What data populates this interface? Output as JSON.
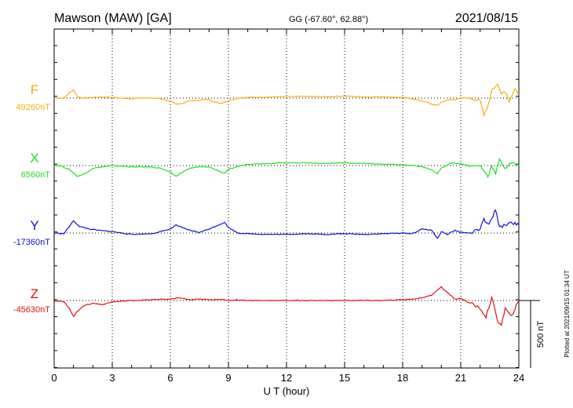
{
  "header": {
    "station": "Mawson (MAW)  [GA]",
    "coords": "GG (-67.60°,  62.88°)",
    "date": "2021/08/15"
  },
  "footer": {
    "plotted": "Plotted at 2021/09/15 01:34  UT"
  },
  "chart_data": {
    "type": "line",
    "xlabel": "U T (hour)",
    "xlim": [
      0,
      24
    ],
    "xticks": [
      "0",
      "3",
      "6",
      "9",
      "12",
      "15",
      "18",
      "21",
      "24"
    ],
    "scale_label": "500 nT",
    "grid": true,
    "series": [
      {
        "name": "F",
        "baseline": "49260nT",
        "color": "#f5b010",
        "x": [
          0,
          0.5,
          0.8,
          1.0,
          1.2,
          1.5,
          2,
          2.5,
          3,
          3.5,
          4,
          4.5,
          5,
          5.5,
          6,
          6.3,
          6.6,
          7,
          7.5,
          8,
          8.3,
          8.6,
          9,
          9.5,
          10,
          11,
          12,
          13,
          14,
          15,
          16,
          17,
          18,
          18.5,
          19,
          19.5,
          19.8,
          20,
          20.3,
          20.7,
          21,
          21.5,
          22,
          22.2,
          22.4,
          22.6,
          22.9,
          23.1,
          23.3,
          23.5,
          23.8,
          24
        ],
        "y": [
          0,
          0,
          40,
          60,
          10,
          0,
          5,
          8,
          5,
          0,
          -5,
          0,
          2,
          -8,
          -20,
          -45,
          -40,
          -20,
          -15,
          -10,
          -30,
          -40,
          -20,
          0,
          5,
          8,
          10,
          12,
          10,
          15,
          8,
          10,
          5,
          -5,
          -20,
          -45,
          -55,
          -30,
          -15,
          -10,
          0,
          0,
          -20,
          -120,
          -60,
          60,
          100,
          40,
          50,
          -20,
          60,
          30
        ]
      },
      {
        "name": "X",
        "baseline": "6560nT",
        "color": "#1fe01f",
        "x": [
          0,
          0.3,
          0.8,
          1.2,
          1.6,
          2,
          2.5,
          3,
          3.5,
          4,
          5,
          5.5,
          6,
          6.3,
          6.6,
          7,
          7.5,
          8,
          8.5,
          8.8,
          9,
          9.5,
          10,
          11,
          12,
          13,
          14,
          15,
          16,
          17,
          18,
          18.5,
          19,
          19.5,
          19.8,
          20,
          20.5,
          21,
          21.5,
          22,
          22.2,
          22.4,
          22.6,
          22.8,
          23,
          23.3,
          23.6,
          24
        ],
        "y": [
          0,
          0,
          -30,
          -80,
          -60,
          -20,
          -10,
          0,
          -5,
          -10,
          -10,
          -20,
          -50,
          -80,
          -50,
          -20,
          -10,
          -10,
          -40,
          -60,
          -30,
          -5,
          10,
          15,
          20,
          20,
          15,
          20,
          15,
          10,
          5,
          0,
          -10,
          -30,
          -60,
          -20,
          20,
          15,
          -5,
          0,
          -40,
          -80,
          0,
          -60,
          40,
          -20,
          20,
          0
        ]
      },
      {
        "name": "Y",
        "baseline": "-17360nT",
        "color": "#1010e0",
        "x": [
          0,
          0.5,
          1.0,
          1.3,
          1.8,
          2.3,
          3,
          3.5,
          4,
          5,
          5.5,
          6,
          6.3,
          6.6,
          7,
          7.5,
          8,
          8.5,
          8.8,
          9,
          9.5,
          10,
          11,
          12,
          13,
          14,
          15,
          16,
          17,
          18,
          18.5,
          19,
          19.5,
          19.8,
          20,
          20.3,
          20.7,
          21,
          21.5,
          22,
          22.2,
          22.4,
          22.6,
          22.8,
          23,
          23.3,
          23.6,
          24
        ],
        "y": [
          0,
          -5,
          90,
          50,
          30,
          20,
          10,
          0,
          -10,
          -5,
          10,
          30,
          60,
          40,
          20,
          5,
          30,
          60,
          80,
          40,
          0,
          -5,
          -10,
          -10,
          -5,
          -10,
          -5,
          -10,
          -5,
          0,
          -5,
          30,
          20,
          -40,
          10,
          -10,
          20,
          5,
          0,
          30,
          100,
          60,
          100,
          180,
          40,
          60,
          80,
          60
        ]
      },
      {
        "name": "Z",
        "baseline": "-45630nT",
        "color": "#e01010",
        "x": [
          0,
          0.5,
          0.8,
          1.0,
          1.2,
          1.5,
          2,
          2.5,
          3,
          3.5,
          4,
          5,
          5.5,
          6,
          6.5,
          7,
          7.5,
          8,
          8.5,
          9,
          9.5,
          10,
          11,
          12,
          13,
          14,
          15,
          16,
          17,
          18,
          18.5,
          19,
          19.5,
          19.8,
          20,
          20.3,
          20.7,
          21,
          21.5,
          22,
          22.3,
          22.6,
          22.9,
          23.1,
          23.3,
          23.6,
          24
        ],
        "y": [
          0,
          -10,
          -60,
          -120,
          -80,
          -40,
          -20,
          -30,
          -10,
          -5,
          0,
          5,
          10,
          10,
          20,
          5,
          10,
          5,
          10,
          0,
          5,
          0,
          0,
          0,
          0,
          0,
          0,
          0,
          0,
          5,
          10,
          20,
          40,
          80,
          100,
          60,
          10,
          15,
          -20,
          -60,
          -120,
          20,
          -150,
          -180,
          -60,
          -120,
          0
        ]
      }
    ]
  }
}
